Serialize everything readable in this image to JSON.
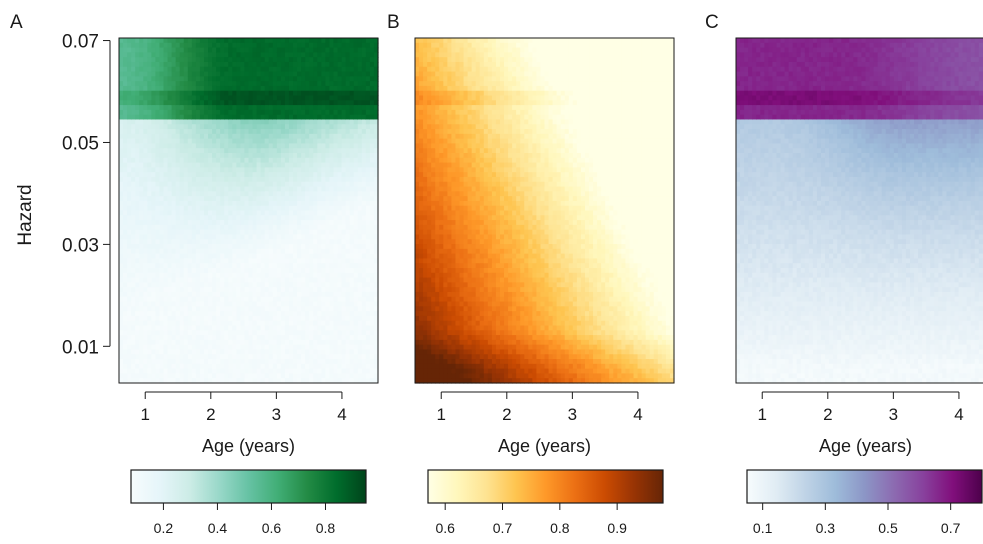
{
  "chart_data": [
    {
      "type": "heatmap",
      "panel_label": "A",
      "xlabel": "Age (years)",
      "ylabel": "Hazard",
      "xlim": [
        0.6,
        4.55
      ],
      "ylim": [
        0.0028,
        0.0705
      ],
      "xticks": [
        1,
        2,
        3,
        4
      ],
      "yticks": [
        0.01,
        0.03,
        0.05,
        0.07
      ],
      "xtick_labels": [
        "1",
        "2",
        "3",
        "4"
      ],
      "ytick_labels": [
        "0.01",
        "0.03",
        "0.05",
        "0.07"
      ],
      "colorbar": {
        "range": [
          0.08,
          0.95
        ],
        "ticks": [
          0.2,
          0.4,
          0.6,
          0.8
        ],
        "tick_labels": [
          "0.2",
          "0.4",
          "0.6",
          "0.8"
        ],
        "colors": [
          "#f7fcfd",
          "#e5f5f9",
          "#ccece6",
          "#99d8c9",
          "#66c2a4",
          "#41ae76",
          "#238b45",
          "#006d2c",
          "#00441b"
        ]
      },
      "grid": false
    },
    {
      "type": "heatmap",
      "panel_label": "B",
      "xlabel": "Age (years)",
      "ylabel": "",
      "xlim": [
        0.6,
        4.55
      ],
      "ylim": [
        0.0028,
        0.0705
      ],
      "xticks": [
        1,
        2,
        3,
        4
      ],
      "xtick_labels": [
        "1",
        "2",
        "3",
        "4"
      ],
      "colorbar": {
        "range": [
          0.57,
          0.98
        ],
        "ticks": [
          0.6,
          0.7,
          0.8,
          0.9
        ],
        "tick_labels": [
          "0.6",
          "0.7",
          "0.8",
          "0.9"
        ],
        "colors": [
          "#ffffe5",
          "#fff7bc",
          "#fee391",
          "#fec44f",
          "#fe9929",
          "#ec7014",
          "#cc4c02",
          "#993404",
          "#662506"
        ]
      },
      "grid": false
    },
    {
      "type": "heatmap",
      "panel_label": "C",
      "xlabel": "Age (years)",
      "ylabel": "",
      "xlim": [
        0.6,
        4.55
      ],
      "ylim": [
        0.0028,
        0.0705
      ],
      "xticks": [
        1,
        2,
        3,
        4
      ],
      "xtick_labels": [
        "1",
        "2",
        "3",
        "4"
      ],
      "colorbar": {
        "range": [
          0.05,
          0.8
        ],
        "ticks": [
          0.1,
          0.3,
          0.5,
          0.7
        ],
        "tick_labels": [
          "0.1",
          "0.3",
          "0.5",
          "0.7"
        ],
        "colors": [
          "#f7fcfd",
          "#e0ecf4",
          "#bfd3e6",
          "#9ebcda",
          "#8c96c6",
          "#8c6bb1",
          "#88419d",
          "#810f7c",
          "#4d004b"
        ]
      },
      "grid": false
    }
  ]
}
